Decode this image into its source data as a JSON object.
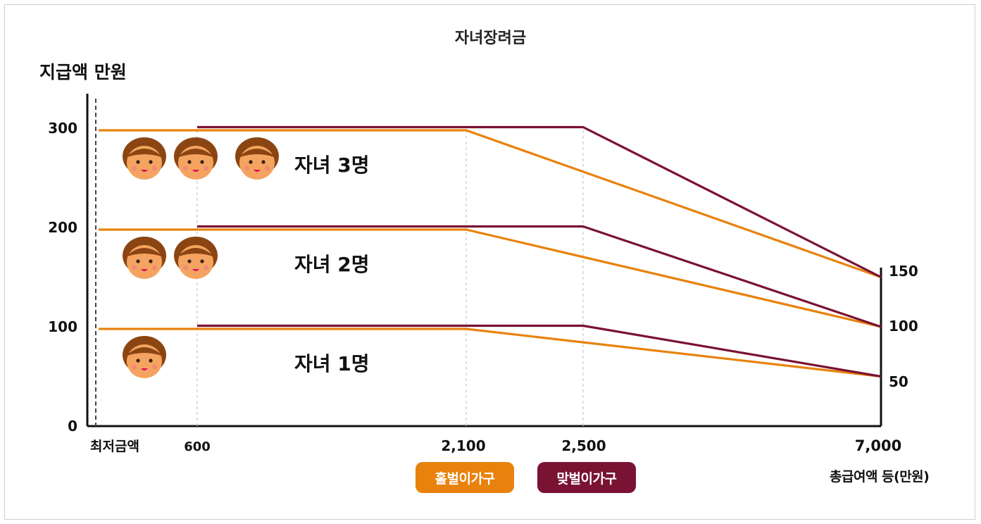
{
  "chart_data": {
    "type": "line",
    "title": "자녀장려금",
    "ylabel": "지급액 만원",
    "xlabel": "총급여액 등(만원)",
    "colors": {
      "홀벌이가구": "#E8820C",
      "맞벌이가구": "#7A1233"
    },
    "x_ticks": [
      "최저금액",
      "600",
      "2,100",
      "2,500",
      "7,000"
    ],
    "y_ticks_left": [
      "0",
      "100",
      "200",
      "300"
    ],
    "y_ticks_right": [
      "50",
      "100",
      "150"
    ],
    "ylim": [
      0,
      330
    ],
    "legend": [
      "홀벌이가구",
      "맞벌이가구"
    ],
    "legend_position": "bottom-center",
    "groups": [
      {
        "label": "자녀 3명",
        "children": 3,
        "series": [
          {
            "name": "홀벌이가구",
            "points": [
              [
                0,
                300
              ],
              [
                2100,
                300
              ],
              [
                7000,
                150
              ]
            ]
          },
          {
            "name": "맞벌이가구",
            "points": [
              [
                600,
                300
              ],
              [
                2500,
                300
              ],
              [
                7000,
                150
              ]
            ]
          }
        ]
      },
      {
        "label": "자녀 2명",
        "children": 2,
        "series": [
          {
            "name": "홀벌이가구",
            "points": [
              [
                0,
                200
              ],
              [
                2100,
                200
              ],
              [
                7000,
                100
              ]
            ]
          },
          {
            "name": "맞벌이가구",
            "points": [
              [
                600,
                200
              ],
              [
                2500,
                200
              ],
              [
                7000,
                100
              ]
            ]
          }
        ]
      },
      {
        "label": "자녀 1명",
        "children": 1,
        "series": [
          {
            "name": "홀벌이가구",
            "points": [
              [
                0,
                100
              ],
              [
                2100,
                100
              ],
              [
                7000,
                50
              ]
            ]
          },
          {
            "name": "맞벌이가구",
            "points": [
              [
                600,
                100
              ],
              [
                2500,
                100
              ],
              [
                7000,
                50
              ]
            ]
          }
        ]
      }
    ]
  }
}
